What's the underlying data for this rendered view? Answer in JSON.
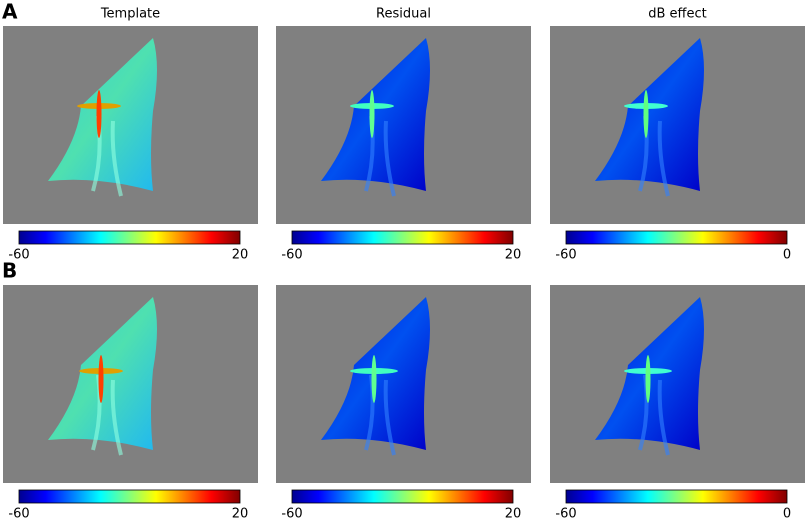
{
  "column_titles": [
    "Template",
    "Residual",
    "dB effect"
  ],
  "rows": [
    {
      "label": "A",
      "colorbars": [
        {
          "min": -60,
          "max": 20
        },
        {
          "min": -60,
          "max": 20
        },
        {
          "min": -60,
          "max": 0
        }
      ]
    },
    {
      "label": "B",
      "colorbars": [
        {
          "min": -60,
          "max": 20
        },
        {
          "min": -60,
          "max": 20
        },
        {
          "min": -60,
          "max": 0
        }
      ]
    }
  ]
}
